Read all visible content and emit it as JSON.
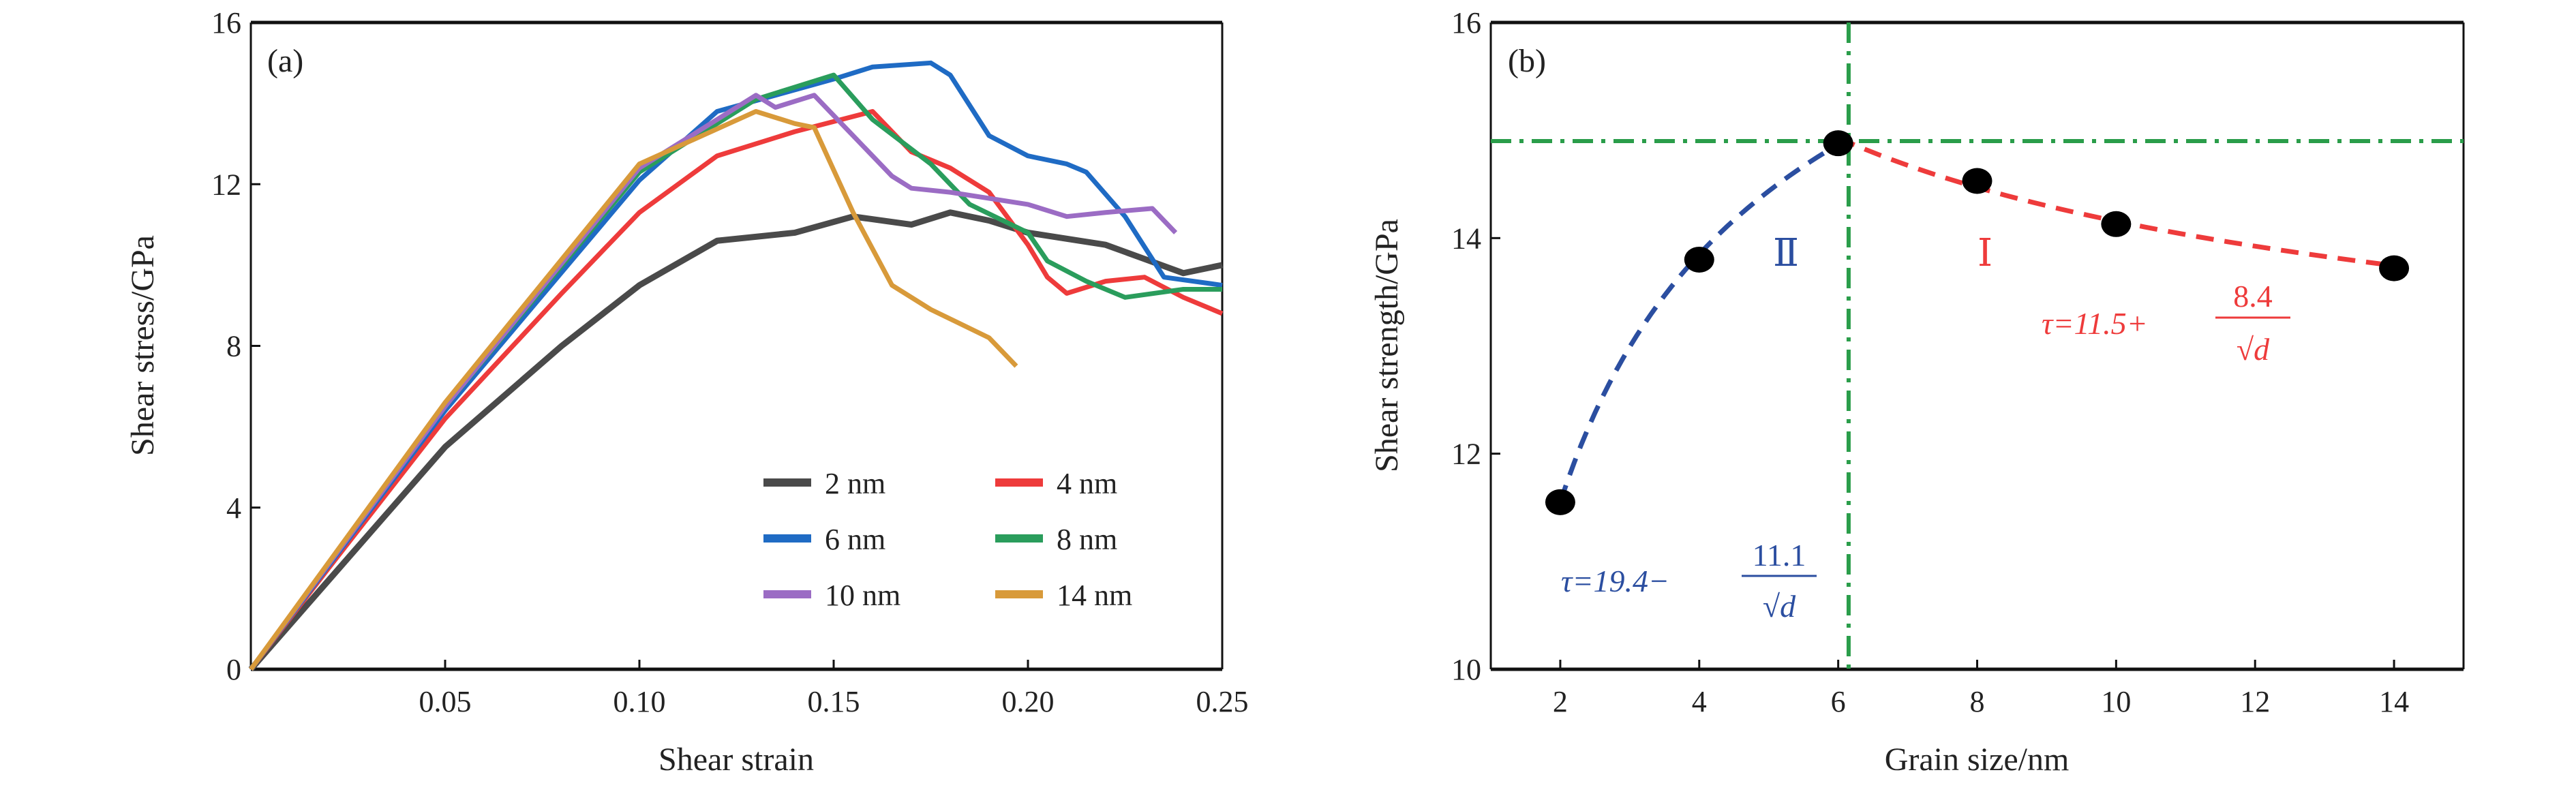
{
  "chart_data": [
    {
      "type": "line",
      "panel_label": "(a)",
      "xlabel": "Shear strain",
      "ylabel": "Shear stress/GPa",
      "xlim": [
        0,
        0.25
      ],
      "ylim": [
        0,
        16
      ],
      "xticks": [
        "0.05",
        "0.10",
        "0.15",
        "0.20",
        "0.25"
      ],
      "xtick_values": [
        0.05,
        0.1,
        0.15,
        0.2,
        0.25
      ],
      "yticks": [
        "0",
        "4",
        "8",
        "12",
        "16"
      ],
      "ytick_values": [
        0,
        4,
        8,
        12,
        16
      ],
      "grid": false,
      "legend_position": "bottom-right",
      "series": [
        {
          "name": "2 nm",
          "color": "#4a4a4a",
          "x": [
            0,
            0.02,
            0.05,
            0.08,
            0.1,
            0.12,
            0.14,
            0.155,
            0.17,
            0.18,
            0.19,
            0.2,
            0.22,
            0.24,
            0.25
          ],
          "y": [
            0,
            2.2,
            5.5,
            8.0,
            9.5,
            10.6,
            10.8,
            11.2,
            11.0,
            11.3,
            11.1,
            10.8,
            10.5,
            9.8,
            10.0
          ]
        },
        {
          "name": "4 nm",
          "color": "#ee3b3b",
          "x": [
            0,
            0.02,
            0.05,
            0.08,
            0.1,
            0.12,
            0.14,
            0.16,
            0.17,
            0.18,
            0.19,
            0.2,
            0.205,
            0.21,
            0.22,
            0.23,
            0.24,
            0.25
          ],
          "y": [
            0,
            2.5,
            6.2,
            9.3,
            11.3,
            12.7,
            13.3,
            13.8,
            12.8,
            12.4,
            11.8,
            10.5,
            9.7,
            9.3,
            9.6,
            9.7,
            9.2,
            8.8
          ]
        },
        {
          "name": "6 nm",
          "color": "#1f6bc4",
          "x": [
            0,
            0.05,
            0.1,
            0.12,
            0.15,
            0.16,
            0.175,
            0.18,
            0.19,
            0.2,
            0.21,
            0.215,
            0.225,
            0.235,
            0.25
          ],
          "y": [
            0,
            6.4,
            12.1,
            13.8,
            14.6,
            14.9,
            15.0,
            14.7,
            13.2,
            12.7,
            12.5,
            12.3,
            11.2,
            9.7,
            9.5
          ]
        },
        {
          "name": "8 nm",
          "color": "#2a9d5c",
          "x": [
            0,
            0.05,
            0.1,
            0.13,
            0.15,
            0.16,
            0.175,
            0.185,
            0.2,
            0.205,
            0.215,
            0.225,
            0.24,
            0.25
          ],
          "y": [
            0,
            6.5,
            12.3,
            14.1,
            14.7,
            13.6,
            12.5,
            11.5,
            10.8,
            10.1,
            9.6,
            9.2,
            9.4,
            9.4
          ]
        },
        {
          "name": "10 nm",
          "color": "#9b6cc4",
          "x": [
            0,
            0.05,
            0.1,
            0.13,
            0.135,
            0.145,
            0.155,
            0.165,
            0.17,
            0.18,
            0.2,
            0.21,
            0.22,
            0.232,
            0.238
          ],
          "y": [
            0,
            6.5,
            12.4,
            14.2,
            13.9,
            14.2,
            13.2,
            12.2,
            11.9,
            11.8,
            11.5,
            11.2,
            11.3,
            11.4,
            10.8
          ]
        },
        {
          "name": "14 nm",
          "color": "#d89a3a",
          "x": [
            0,
            0.05,
            0.1,
            0.13,
            0.14,
            0.145,
            0.155,
            0.165,
            0.175,
            0.19,
            0.197
          ],
          "y": [
            0,
            6.6,
            12.5,
            13.8,
            13.5,
            13.4,
            11.3,
            9.5,
            8.9,
            8.2,
            7.5
          ]
        }
      ]
    },
    {
      "type": "scatter",
      "panel_label": "(b)",
      "xlabel": "Grain size/nm",
      "ylabel": "Shear strength/GPa",
      "xlim": [
        1,
        15
      ],
      "ylim": [
        10,
        16
      ],
      "xticks": [
        "2",
        "4",
        "6",
        "8",
        "10",
        "12",
        "14"
      ],
      "xtick_values": [
        2,
        4,
        6,
        8,
        10,
        12,
        14
      ],
      "yticks": [
        "10",
        "12",
        "14",
        "16"
      ],
      "ytick_values": [
        10,
        12,
        14,
        16
      ],
      "grid": false,
      "points": {
        "x": [
          2,
          4,
          6,
          8,
          10,
          14
        ],
        "y": [
          11.55,
          13.8,
          14.88,
          14.53,
          14.13,
          13.72
        ],
        "color": "#000000"
      },
      "reference_lines": {
        "horizontal_y": 14.9,
        "vertical_x": 6.15,
        "color": "#2a9d4a"
      },
      "fits": [
        {
          "region": "Ⅱ",
          "color": "#2b4ea0",
          "a": 19.4,
          "b": -11.1,
          "x_range": [
            2,
            6
          ],
          "formula_lhs": "τ=19.4−",
          "numerator": "11.1",
          "denominator": "√d"
        },
        {
          "region": "Ⅰ",
          "color": "#ee3b3b",
          "a": 11.5,
          "b": 8.4,
          "x_range": [
            6,
            14
          ],
          "formula_lhs": "τ=11.5+",
          "numerator": "8.4",
          "denominator": "√d"
        }
      ]
    }
  ]
}
